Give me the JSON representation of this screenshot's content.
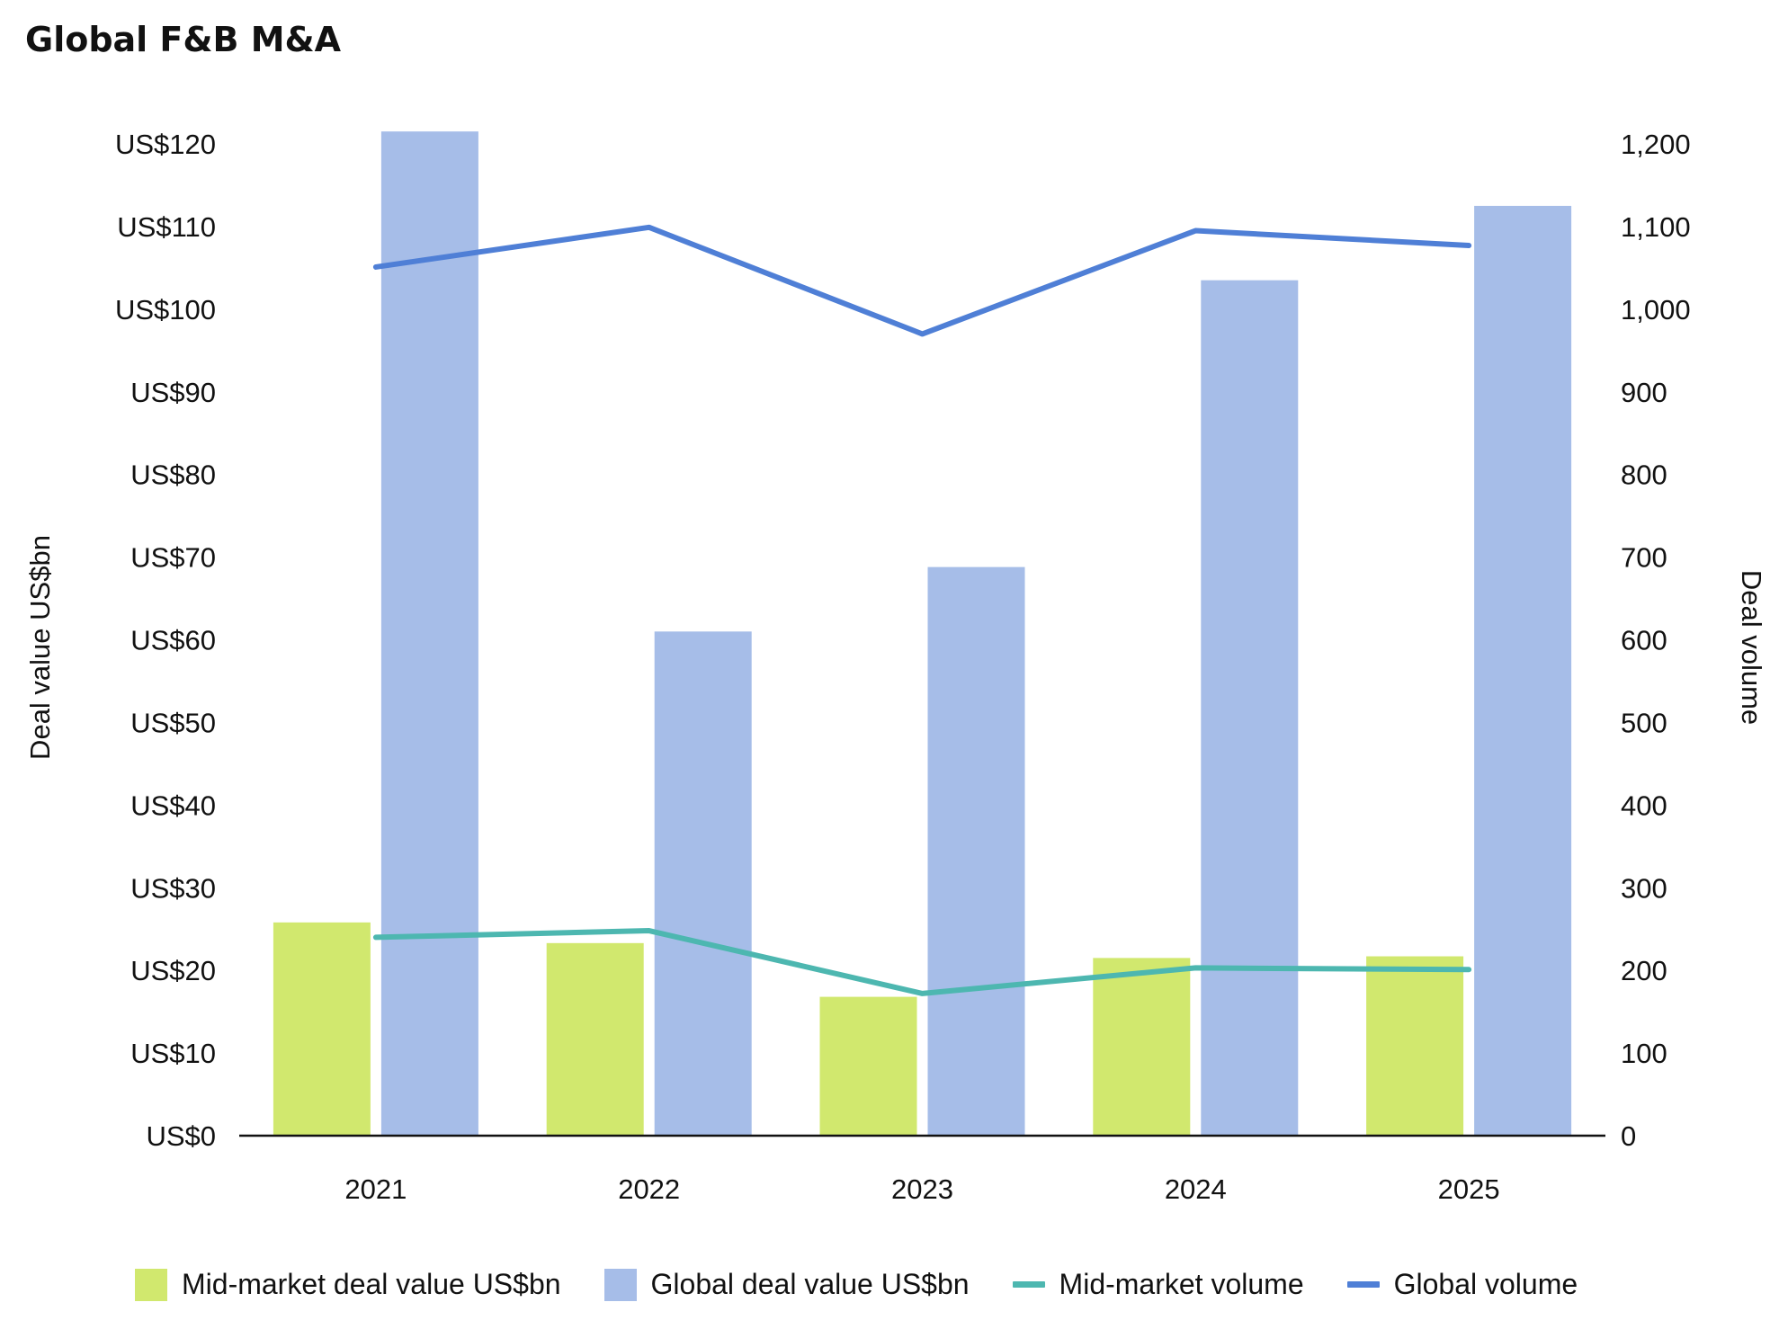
{
  "title": "Global F&B M&A",
  "colors": {
    "mid_market_bar": "#D1E86E",
    "global_bar": "#A6BDE8",
    "mid_market_line": "#4DB7B0",
    "global_line": "#4F7FD6",
    "axis": "#111111"
  },
  "chart_data": {
    "type": "bar",
    "categories": [
      "2021",
      "2022",
      "2023",
      "2024",
      "2025"
    ],
    "series": [
      {
        "name": "Mid-market deal value US$bn",
        "kind": "bar",
        "axis": "left",
        "values": [
          25.8,
          23.3,
          16.8,
          21.5,
          21.7
        ]
      },
      {
        "name": "Global deal value US$bn",
        "kind": "bar",
        "axis": "left",
        "values": [
          121.5,
          61.0,
          68.8,
          103.5,
          112.5
        ]
      },
      {
        "name": "Mid-market volume",
        "kind": "line",
        "axis": "right",
        "values": [
          240,
          248,
          172,
          203,
          201
        ]
      },
      {
        "name": "Global volume",
        "kind": "line",
        "axis": "right",
        "values": [
          1051,
          1099,
          970,
          1095,
          1077
        ]
      }
    ],
    "y_left": {
      "label": "Deal value US$bn",
      "range": [
        0,
        120
      ],
      "tick_values": [
        0,
        10,
        20,
        30,
        40,
        50,
        60,
        70,
        80,
        90,
        100,
        110,
        120
      ],
      "tick_labels": [
        "US$0",
        "US$10",
        "US$20",
        "US$30",
        "US$40",
        "US$50",
        "US$60",
        "US$70",
        "US$80",
        "US$90",
        "US$100",
        "US$110",
        "US$120"
      ]
    },
    "y_right": {
      "label": "Deal volume",
      "range": [
        0,
        1200
      ],
      "tick_values": [
        0,
        100,
        200,
        300,
        400,
        500,
        600,
        700,
        800,
        900,
        1000,
        1100,
        1200
      ],
      "tick_labels": [
        "0",
        "100",
        "200",
        "300",
        "400",
        "500",
        "600",
        "700",
        "800",
        "900",
        "1,000",
        "1,100",
        "1,200"
      ]
    },
    "grid": false,
    "legend_position": "bottom"
  },
  "legend": [
    {
      "label": "Mid-market deal value US$bn",
      "shape": "box",
      "color": "#D1E86E"
    },
    {
      "label": "Global deal value US$bn",
      "shape": "box",
      "color": "#A6BDE8"
    },
    {
      "label": "Mid-market volume",
      "shape": "line",
      "color": "#4DB7B0"
    },
    {
      "label": "Global volume",
      "shape": "line",
      "color": "#4F7FD6"
    }
  ]
}
